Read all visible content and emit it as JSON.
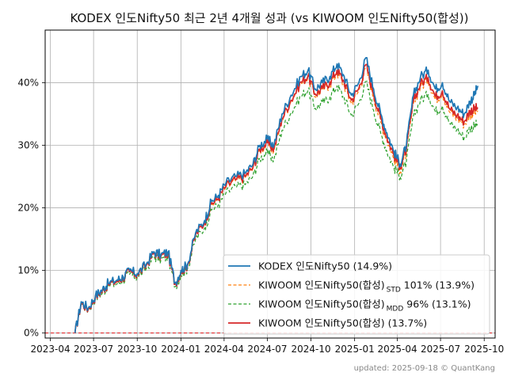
{
  "chart_data": {
    "type": "line",
    "title": "KODEX 인도Nifty50 최근 2년 4개월 성과 (vs KIWOOM 인도Nifty50(합성))",
    "xlabel": "",
    "ylabel": "",
    "x_ticks": [
      "2023-04",
      "2023-07",
      "2023-10",
      "2024-01",
      "2024-04",
      "2024-07",
      "2024-10",
      "2025-01",
      "2025-04",
      "2025-07",
      "2025-10"
    ],
    "y_ticks": [
      "0%",
      "10%",
      "20%",
      "30%",
      "40%"
    ],
    "ylim": [
      -0.8,
      48.4
    ],
    "xlim": [
      "2023-03-21",
      "2025-10-24"
    ],
    "grid": true,
    "legend_position": "bottom-right",
    "zero_line_color": "#e41a1c",
    "series": [
      {
        "name": "KODEX 인도Nifty50 (14.9%)",
        "color": "#1f77b4",
        "dashed": false,
        "points": [
          [
            "2023-05-23",
            0
          ],
          [
            "2023-06-05",
            5
          ],
          [
            "2023-06-20",
            4
          ],
          [
            "2023-07-05",
            6
          ],
          [
            "2023-07-20",
            7
          ],
          [
            "2023-08-01",
            8
          ],
          [
            "2023-08-20",
            8.5
          ],
          [
            "2023-09-01",
            9
          ],
          [
            "2023-09-15",
            10
          ],
          [
            "2023-10-01",
            9.5
          ],
          [
            "2023-10-20",
            11
          ],
          [
            "2023-11-05",
            13
          ],
          [
            "2023-11-20",
            12.5
          ],
          [
            "2023-12-05",
            13
          ],
          [
            "2023-12-20",
            8
          ],
          [
            "2024-01-01",
            10
          ],
          [
            "2024-01-15",
            11
          ],
          [
            "2024-02-01",
            16
          ],
          [
            "2024-02-20",
            18
          ],
          [
            "2024-03-05",
            21
          ],
          [
            "2024-03-20",
            22
          ],
          [
            "2024-04-05",
            24
          ],
          [
            "2024-04-25",
            25
          ],
          [
            "2024-05-15",
            25.5
          ],
          [
            "2024-06-01",
            27
          ],
          [
            "2024-06-15",
            30
          ],
          [
            "2024-07-01",
            31
          ],
          [
            "2024-07-15",
            30
          ],
          [
            "2024-08-01",
            35
          ],
          [
            "2024-08-20",
            38
          ],
          [
            "2024-09-10",
            41
          ],
          [
            "2024-09-25",
            42
          ],
          [
            "2024-10-10",
            39
          ],
          [
            "2024-10-25",
            40
          ],
          [
            "2024-11-10",
            41
          ],
          [
            "2024-11-25",
            43
          ],
          [
            "2024-12-10",
            41
          ],
          [
            "2024-12-25",
            38
          ],
          [
            "2025-01-10",
            40
          ],
          [
            "2025-01-25",
            44
          ],
          [
            "2025-02-10",
            39
          ],
          [
            "2025-02-25",
            35
          ],
          [
            "2025-03-10",
            32
          ],
          [
            "2025-03-25",
            29
          ],
          [
            "2025-04-07",
            27
          ],
          [
            "2025-04-20",
            30
          ],
          [
            "2025-05-05",
            38
          ],
          [
            "2025-05-20",
            41
          ],
          [
            "2025-06-05",
            42
          ],
          [
            "2025-06-20",
            39
          ],
          [
            "2025-07-05",
            40
          ],
          [
            "2025-07-20",
            37
          ],
          [
            "2025-08-05",
            36
          ],
          [
            "2025-08-20",
            35
          ],
          [
            "2025-09-01",
            37
          ],
          [
            "2025-09-10",
            38
          ],
          [
            "2025-09-18",
            39.5
          ]
        ]
      },
      {
        "name": "KIWOOM 인도Nifty50(합성)",
        "name_sub": "STD",
        "name_tail": "101% (13.9%)",
        "color": "#ff7f0e",
        "dashed": true,
        "points": [
          [
            "2023-05-23",
            0
          ],
          [
            "2023-06-05",
            4.8
          ],
          [
            "2023-06-20",
            3.8
          ],
          [
            "2023-07-05",
            5.8
          ],
          [
            "2023-07-20",
            6.8
          ],
          [
            "2023-08-01",
            7.8
          ],
          [
            "2023-08-20",
            8.2
          ],
          [
            "2023-09-01",
            8.8
          ],
          [
            "2023-09-15",
            9.8
          ],
          [
            "2023-10-01",
            9.2
          ],
          [
            "2023-10-20",
            10.8
          ],
          [
            "2023-11-05",
            12.8
          ],
          [
            "2023-11-20",
            12.2
          ],
          [
            "2023-12-05",
            12.8
          ],
          [
            "2023-12-20",
            7.8
          ],
          [
            "2024-01-01",
            9.8
          ],
          [
            "2024-01-15",
            10.8
          ],
          [
            "2024-02-01",
            15.7
          ],
          [
            "2024-02-20",
            17.6
          ],
          [
            "2024-03-05",
            20.4
          ],
          [
            "2024-03-20",
            21.4
          ],
          [
            "2024-04-05",
            23.3
          ],
          [
            "2024-04-25",
            24.3
          ],
          [
            "2024-05-15",
            24.8
          ],
          [
            "2024-06-01",
            26.3
          ],
          [
            "2024-06-15",
            29.2
          ],
          [
            "2024-07-01",
            30.2
          ],
          [
            "2024-07-15",
            29.1
          ],
          [
            "2024-08-01",
            34.1
          ],
          [
            "2024-08-20",
            37
          ],
          [
            "2024-09-10",
            39.9
          ],
          [
            "2024-09-25",
            40.8
          ],
          [
            "2024-10-10",
            37.8
          ],
          [
            "2024-10-25",
            38.8
          ],
          [
            "2024-11-10",
            39.7
          ],
          [
            "2024-11-25",
            41.6
          ],
          [
            "2024-12-10",
            39.6
          ],
          [
            "2024-12-25",
            36.7
          ],
          [
            "2025-01-10",
            38.7
          ],
          [
            "2025-01-25",
            42.4
          ],
          [
            "2025-02-10",
            37.6
          ],
          [
            "2025-02-25",
            33.7
          ],
          [
            "2025-03-10",
            30.8
          ],
          [
            "2025-03-25",
            27.8
          ],
          [
            "2025-04-07",
            25.9
          ],
          [
            "2025-04-20",
            28.8
          ],
          [
            "2025-05-05",
            36.6
          ],
          [
            "2025-05-20",
            39.4
          ],
          [
            "2025-06-05",
            40.3
          ],
          [
            "2025-06-20",
            37.3
          ],
          [
            "2025-07-05",
            38.3
          ],
          [
            "2025-07-20",
            35.3
          ],
          [
            "2025-08-05",
            34.3
          ],
          [
            "2025-08-20",
            33.3
          ],
          [
            "2025-09-01",
            34.8
          ],
          [
            "2025-09-10",
            35.2
          ],
          [
            "2025-09-18",
            35.5
          ]
        ]
      },
      {
        "name": "KIWOOM 인도Nifty50(합성)",
        "name_sub": "MDD",
        "name_tail": "96% (13.1%)",
        "color": "#2ca02c",
        "dashed": true,
        "points": [
          [
            "2023-05-23",
            0
          ],
          [
            "2023-06-05",
            4.7
          ],
          [
            "2023-06-20",
            3.7
          ],
          [
            "2023-07-05",
            5.6
          ],
          [
            "2023-07-20",
            6.5
          ],
          [
            "2023-08-01",
            7.5
          ],
          [
            "2023-08-20",
            7.9
          ],
          [
            "2023-09-01",
            8.4
          ],
          [
            "2023-09-15",
            9.4
          ],
          [
            "2023-10-01",
            8.9
          ],
          [
            "2023-10-20",
            10.3
          ],
          [
            "2023-11-05",
            12.2
          ],
          [
            "2023-11-20",
            11.7
          ],
          [
            "2023-12-05",
            12.2
          ],
          [
            "2023-12-20",
            7.4
          ],
          [
            "2024-01-01",
            9.3
          ],
          [
            "2024-01-15",
            10.3
          ],
          [
            "2024-02-01",
            15
          ],
          [
            "2024-02-20",
            16.8
          ],
          [
            "2024-03-05",
            19.6
          ],
          [
            "2024-03-20",
            20.5
          ],
          [
            "2024-04-05",
            22.4
          ],
          [
            "2024-04-25",
            23.3
          ],
          [
            "2024-05-15",
            23.7
          ],
          [
            "2024-06-01",
            25.1
          ],
          [
            "2024-06-15",
            27.9
          ],
          [
            "2024-07-01",
            28.8
          ],
          [
            "2024-07-15",
            27.7
          ],
          [
            "2024-08-01",
            32.4
          ],
          [
            "2024-08-20",
            35.2
          ],
          [
            "2024-09-10",
            37.9
          ],
          [
            "2024-09-25",
            38.8
          ],
          [
            "2024-10-10",
            35.9
          ],
          [
            "2024-10-25",
            36.8
          ],
          [
            "2024-11-10",
            37.7
          ],
          [
            "2024-11-25",
            39.5
          ],
          [
            "2024-12-10",
            37.6
          ],
          [
            "2024-12-25",
            34.8
          ],
          [
            "2025-01-10",
            36.7
          ],
          [
            "2025-01-25",
            40.2
          ],
          [
            "2025-02-10",
            35.6
          ],
          [
            "2025-02-25",
            31.9
          ],
          [
            "2025-03-10",
            29.1
          ],
          [
            "2025-03-25",
            26.4
          ],
          [
            "2025-04-07",
            25
          ],
          [
            "2025-04-20",
            27.4
          ],
          [
            "2025-05-05",
            34.6
          ],
          [
            "2025-05-20",
            37.3
          ],
          [
            "2025-06-05",
            38.1
          ],
          [
            "2025-06-20",
            35.4
          ],
          [
            "2025-07-05",
            36.3
          ],
          [
            "2025-07-20",
            33.5
          ],
          [
            "2025-08-05",
            32.6
          ],
          [
            "2025-08-20",
            31.2
          ],
          [
            "2025-09-01",
            32.8
          ],
          [
            "2025-09-10",
            33
          ],
          [
            "2025-09-18",
            33.5
          ]
        ]
      },
      {
        "name": "KIWOOM 인도Nifty50(합성)  (13.7%)",
        "color": "#d62728",
        "dashed": false,
        "points": [
          [
            "2023-05-23",
            0
          ],
          [
            "2023-06-05",
            4.8
          ],
          [
            "2023-06-20",
            3.8
          ],
          [
            "2023-07-05",
            5.8
          ],
          [
            "2023-07-20",
            6.8
          ],
          [
            "2023-08-01",
            7.8
          ],
          [
            "2023-08-20",
            8.3
          ],
          [
            "2023-09-01",
            8.8
          ],
          [
            "2023-09-15",
            9.8
          ],
          [
            "2023-10-01",
            9.3
          ],
          [
            "2023-10-20",
            10.8
          ],
          [
            "2023-11-05",
            12.8
          ],
          [
            "2023-11-20",
            12.3
          ],
          [
            "2023-12-05",
            12.7
          ],
          [
            "2023-12-20",
            7.8
          ],
          [
            "2024-01-01",
            9.8
          ],
          [
            "2024-01-15",
            10.8
          ],
          [
            "2024-02-01",
            15.7
          ],
          [
            "2024-02-20",
            17.7
          ],
          [
            "2024-03-05",
            20.6
          ],
          [
            "2024-03-20",
            21.6
          ],
          [
            "2024-04-05",
            23.5
          ],
          [
            "2024-04-25",
            24.5
          ],
          [
            "2024-05-15",
            25
          ],
          [
            "2024-06-01",
            26.5
          ],
          [
            "2024-06-15",
            29.4
          ],
          [
            "2024-07-01",
            30.4
          ],
          [
            "2024-07-15",
            29.4
          ],
          [
            "2024-08-01",
            34.3
          ],
          [
            "2024-08-20",
            37.2
          ],
          [
            "2024-09-10",
            40.1
          ],
          [
            "2024-09-25",
            41.1
          ],
          [
            "2024-10-10",
            38.2
          ],
          [
            "2024-10-25",
            39.1
          ],
          [
            "2024-11-10",
            40.1
          ],
          [
            "2024-11-25",
            42
          ],
          [
            "2024-12-10",
            40.1
          ],
          [
            "2024-12-25",
            37.2
          ],
          [
            "2025-01-10",
            39.1
          ],
          [
            "2025-01-25",
            42.9
          ],
          [
            "2025-02-10",
            38.2
          ],
          [
            "2025-02-25",
            34.3
          ],
          [
            "2025-03-10",
            31.3
          ],
          [
            "2025-03-25",
            28.4
          ],
          [
            "2025-04-07",
            26.6
          ],
          [
            "2025-04-20",
            29.4
          ],
          [
            "2025-05-05",
            37.1
          ],
          [
            "2025-05-20",
            39.9
          ],
          [
            "2025-06-05",
            40.8
          ],
          [
            "2025-06-20",
            37.8
          ],
          [
            "2025-07-05",
            38.7
          ],
          [
            "2025-07-20",
            35.8
          ],
          [
            "2025-08-05",
            34.8
          ],
          [
            "2025-08-20",
            33.8
          ],
          [
            "2025-09-01",
            35.5
          ],
          [
            "2025-09-10",
            35.8
          ],
          [
            "2025-09-18",
            36
          ]
        ]
      }
    ]
  },
  "footer": "updated: 2025-09-18 © QuantKang"
}
